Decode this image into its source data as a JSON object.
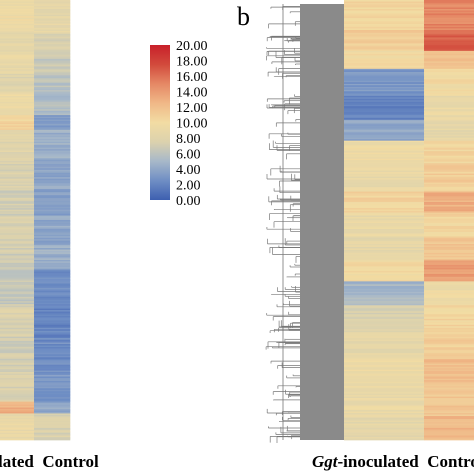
{
  "chart_data": [
    {
      "type": "heatmap",
      "panel": "",
      "columns": [
        "",
        "Control"
      ],
      "column_label_text": "lated  Control",
      "value_range": [
        0,
        20
      ],
      "row_bands": [
        {
          "rows": 22,
          "values": [
            9.5,
            8.5
          ]
        },
        {
          "rows": 14,
          "values": [
            8.5,
            7.5
          ]
        },
        {
          "rows": 14,
          "values": [
            9.0,
            6.5
          ]
        },
        {
          "rows": 12,
          "values": [
            8.0,
            6.0
          ]
        },
        {
          "rows": 16,
          "values": [
            9.5,
            5.5
          ]
        },
        {
          "rows": 10,
          "values": [
            10.5,
            3.0
          ]
        },
        {
          "rows": 20,
          "values": [
            8.0,
            4.5
          ]
        },
        {
          "rows": 20,
          "values": [
            7.5,
            4.0
          ]
        },
        {
          "rows": 18,
          "values": [
            7.0,
            3.5
          ]
        },
        {
          "rows": 20,
          "values": [
            7.5,
            4.0
          ]
        },
        {
          "rows": 16,
          "values": [
            7.0,
            4.5
          ]
        },
        {
          "rows": 24,
          "values": [
            6.5,
            2.5
          ]
        },
        {
          "rows": 22,
          "values": [
            7.5,
            2.0
          ]
        },
        {
          "rows": 24,
          "values": [
            7.0,
            2.5
          ]
        },
        {
          "rows": 20,
          "values": [
            7.5,
            3.0
          ]
        },
        {
          "rows": 8,
          "values": [
            13.0,
            4.0
          ]
        },
        {
          "rows": 18,
          "values": [
            9.0,
            7.5
          ]
        }
      ]
    },
    {
      "type": "heatmap",
      "panel": "b",
      "columns": [
        "Ggt-inoculated",
        "Control"
      ],
      "column_label_prefix": "Ggt",
      "column_label_suffix": "-inoculated  Contro",
      "value_range": [
        0,
        20
      ],
      "row_bands": [
        {
          "rows": 20,
          "values": [
            10.5,
            15.0
          ]
        },
        {
          "rows": 14,
          "values": [
            11.0,
            16.5
          ]
        },
        {
          "rows": 12,
          "values": [
            10.0,
            12.0
          ]
        },
        {
          "rows": 18,
          "values": [
            3.0,
            10.0
          ]
        },
        {
          "rows": 16,
          "values": [
            2.0,
            9.0
          ]
        },
        {
          "rows": 14,
          "values": [
            4.0,
            8.5
          ]
        },
        {
          "rows": 16,
          "values": [
            9.5,
            10.5
          ]
        },
        {
          "rows": 18,
          "values": [
            9.0,
            11.0
          ]
        },
        {
          "rows": 14,
          "values": [
            10.5,
            13.0
          ]
        },
        {
          "rows": 16,
          "values": [
            9.0,
            10.5
          ]
        },
        {
          "rows": 16,
          "values": [
            8.5,
            11.5
          ]
        },
        {
          "rows": 14,
          "values": [
            10.0,
            14.0
          ]
        },
        {
          "rows": 16,
          "values": [
            5.0,
            9.5
          ]
        },
        {
          "rows": 18,
          "values": [
            7.5,
            10.5
          ]
        },
        {
          "rows": 18,
          "values": [
            8.5,
            11.0
          ]
        },
        {
          "rows": 18,
          "values": [
            9.5,
            12.0
          ]
        },
        {
          "rows": 20,
          "values": [
            9.0,
            11.5
          ]
        },
        {
          "rows": 16,
          "values": [
            8.5,
            12.5
          ]
        }
      ]
    }
  ],
  "legend": {
    "ticks": [
      "20.00",
      "18.00",
      "16.00",
      "14.00",
      "12.00",
      "10.00",
      "8.00",
      "6.00",
      "4.00",
      "2.00",
      "0.00"
    ],
    "tick_values": [
      20,
      18,
      16,
      14,
      12,
      10,
      8,
      6,
      4,
      2,
      0
    ],
    "colormap": [
      "#3d5fb0",
      "#6f8ec4",
      "#a7b8c9",
      "#dcd2ad",
      "#f2dca3",
      "#f0b887",
      "#e58865",
      "#d24a3c",
      "#c8202a"
    ]
  },
  "labels": {
    "panel_b": "b",
    "left_columns": "lated  Control",
    "right_prefix": "Ggt",
    "right_suffix": "-inoculated  Contro"
  }
}
